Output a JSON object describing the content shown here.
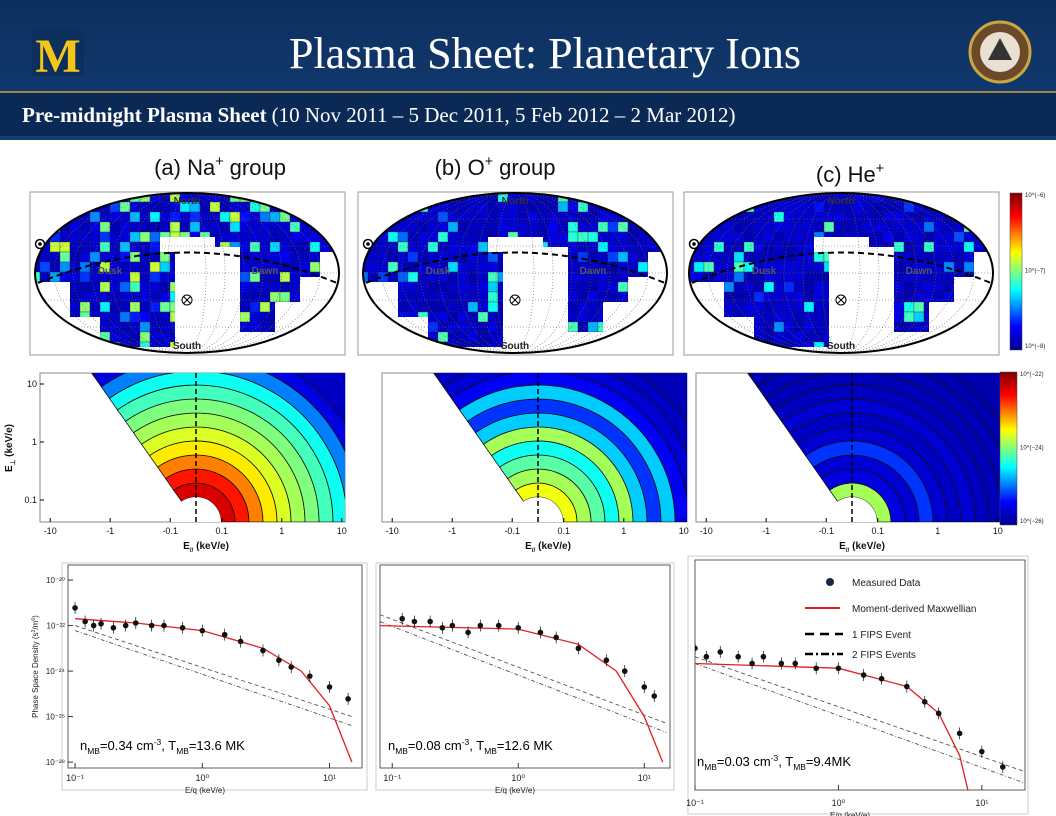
{
  "header": {
    "title": "Plasma Sheet: Planetary Ions",
    "subtitle_bold": "Pre-midnight Plasma Sheet",
    "subtitle_rest": "(10 Nov 2011 – 5 Dec 2011,  5 Feb 2012 – 2 Mar 2012)"
  },
  "columns": [
    {
      "label": [
        {
          "text": "(a) Na"
        },
        {
          "text": "+",
          "style": "sup"
        },
        {
          "text": " group"
        }
      ]
    },
    {
      "label": [
        {
          "text": "(b) O"
        },
        {
          "text": "+",
          "style": "sup"
        },
        {
          "text": " group"
        }
      ]
    },
    {
      "label": [
        {
          "text": "(c) He"
        },
        {
          "text": "+",
          "style": "sup"
        }
      ]
    }
  ],
  "maps": {
    "labels": [
      "North",
      "South",
      "Dusk",
      "Dawn"
    ],
    "colorbar_ticks": [
      "10^(−6)",
      "10^(−7)",
      "10^(−8)"
    ]
  },
  "energy": {
    "y_label": [
      {
        "text": "E"
      },
      {
        "text": "⊥",
        "style": "sub"
      },
      {
        "text": " (keV/e)"
      }
    ],
    "x_label": [
      {
        "text": "E"
      },
      {
        "text": "//",
        "style": "sub"
      },
      {
        "text": " (keV/e)"
      }
    ],
    "yticks": [
      10,
      1,
      0.1
    ],
    "xticks": [
      -10,
      -1,
      -0.1,
      0.1,
      1,
      10
    ],
    "symlog": true,
    "colorbar_ticks": [
      "10^(−22)",
      "10^(−24)",
      "10^(−26)"
    ]
  },
  "spectra": {
    "type": "scatter",
    "log_x": true,
    "log_y": true,
    "y_label": [
      {
        "text": "Phase Space Density (s"
      },
      {
        "text": "3",
        "style": "sup"
      },
      {
        "text": "/m"
      },
      {
        "text": "6",
        "style": "sup"
      },
      {
        "text": ")"
      }
    ],
    "x_label": "E/q (keV/e)",
    "legend": [
      "Measured Data",
      "Moment-derived Maxwellian",
      "1 FIPS Event",
      "2 FIPS Events"
    ],
    "colors": {
      "points": "#111111",
      "maxwellian": "#e02020",
      "fips": "#555555"
    },
    "panels": [
      {
        "xlim": [
          0.088,
          18
        ],
        "ylim": [
          5.5e-29,
          4.6e-20
        ],
        "xticks": [
          {
            "value": 0.1,
            "label": "10⁻¹"
          },
          {
            "value": 1,
            "label": "10⁰"
          },
          {
            "value": 10,
            "label": "10¹"
          }
        ],
        "yticks": [
          {
            "value": 1e-20,
            "label": "10⁻²⁰"
          },
          {
            "value": 1e-22,
            "label": "10⁻²²"
          },
          {
            "value": 1e-24,
            "label": "10⁻²⁴"
          },
          {
            "value": 1e-26,
            "label": "10⁻²⁶"
          },
          {
            "value": 1e-28,
            "label": "10⁻²⁸"
          }
        ],
        "annotation": [
          {
            "text": "n"
          },
          {
            "text": "MB",
            "style": "sub"
          },
          {
            "text": "=0.34 cm"
          },
          {
            "text": "-3",
            "style": "sup"
          },
          {
            "text": ", T"
          },
          {
            "text": "MB",
            "style": "sub"
          },
          {
            "text": "=13.6 MK"
          }
        ],
        "points": {
          "x": [
            0.1,
            0.12,
            0.14,
            0.16,
            0.2,
            0.25,
            0.3,
            0.4,
            0.5,
            0.7,
            1,
            1.5,
            2,
            3,
            4,
            5,
            7,
            10,
            14
          ],
          "y": [
            6e-22,
            1.5e-22,
            1e-22,
            1.2e-22,
            8e-23,
            1e-22,
            1.3e-22,
            1e-22,
            1e-22,
            8e-23,
            6e-23,
            4e-23,
            2e-23,
            8e-24,
            3e-24,
            1.5e-24,
            6e-25,
            2e-25,
            6e-26
          ]
        },
        "maxwellian": {
          "x": [
            0.1,
            0.3,
            1,
            3,
            6,
            10,
            15
          ],
          "y": [
            2e-22,
            1.3e-22,
            6e-23,
            1e-23,
            1e-24,
            3e-26,
            1e-28
          ]
        },
        "fips1": {
          "x": [
            0.1,
            15
          ],
          "y": [
            1e-22,
            1e-26
          ]
        },
        "fips2": {
          "x": [
            0.1,
            15
          ],
          "y": [
            6e-23,
            4e-27
          ]
        }
      },
      {
        "xlim": [
          0.08,
          16
        ],
        "ylim": [
          5.5e-29,
          4.6e-20
        ],
        "xticks": [
          {
            "value": 0.1,
            "label": "10⁻¹"
          },
          {
            "value": 1,
            "label": "10⁰"
          },
          {
            "value": 10,
            "label": "10¹"
          }
        ],
        "yticks": [],
        "annotation": [
          {
            "text": "n"
          },
          {
            "text": "MB",
            "style": "sub"
          },
          {
            "text": "=0.08 cm"
          },
          {
            "text": "-3",
            "style": "sup"
          },
          {
            "text": ", T"
          },
          {
            "text": "MB",
            "style": "sub"
          },
          {
            "text": "=12.6 MK"
          }
        ],
        "points": {
          "x": [
            0.12,
            0.15,
            0.2,
            0.25,
            0.3,
            0.4,
            0.5,
            0.7,
            1,
            1.5,
            2,
            3,
            5,
            7,
            10,
            12
          ],
          "y": [
            2e-22,
            1.5e-22,
            1.5e-22,
            8e-23,
            1e-22,
            5e-23,
            1e-22,
            1e-22,
            8e-23,
            5e-23,
            3e-23,
            1e-23,
            3e-24,
            1e-24,
            2e-25,
            8e-26
          ]
        },
        "maxwellian": {
          "x": [
            0.08,
            1,
            3,
            6,
            10,
            14
          ],
          "y": [
            1e-22,
            7e-23,
            1.5e-23,
            1e-24,
            1e-26,
            1e-28
          ]
        },
        "fips1": {
          "x": [
            0.08,
            15
          ],
          "y": [
            3e-22,
            5e-27
          ]
        },
        "fips2": {
          "x": [
            0.08,
            15
          ],
          "y": [
            1.5e-22,
            2e-27
          ]
        }
      },
      {
        "xlim": [
          0.1,
          20
        ],
        "ylim": [
          1e-29,
          1e-23
        ],
        "xticks": [
          {
            "value": 0.1,
            "label": "10⁻¹"
          },
          {
            "value": 1,
            "label": "10⁰"
          },
          {
            "value": 10,
            "label": "10¹"
          }
        ],
        "yticks": [],
        "annotation": [
          {
            "text": "n"
          },
          {
            "text": "MB",
            "style": "sub"
          },
          {
            "text": "=0.03 cm"
          },
          {
            "text": "-3",
            "style": "sup"
          },
          {
            "text": ", T"
          },
          {
            "text": "MB",
            "style": "sub"
          },
          {
            "text": "=9.4MK"
          }
        ],
        "points": {
          "x": [
            0.1,
            0.12,
            0.15,
            0.2,
            0.25,
            0.3,
            0.4,
            0.5,
            0.7,
            1,
            1.5,
            2,
            3,
            4,
            5,
            7,
            10,
            14
          ],
          "y": [
            5e-26,
            3e-26,
            4e-26,
            3e-26,
            2e-26,
            3e-26,
            2e-26,
            2e-26,
            1.5e-26,
            1.5e-26,
            1e-26,
            8e-27,
            5e-27,
            2e-27,
            1e-27,
            3e-28,
            1e-28,
            4e-29
          ]
        },
        "maxwellian": {
          "x": [
            0.1,
            1,
            3,
            5,
            7,
            8
          ],
          "y": [
            2e-26,
            1.5e-26,
            5e-27,
            1e-27,
            8e-29,
            1e-29
          ]
        },
        "fips1": {
          "x": [
            0.1,
            20
          ],
          "y": [
            3e-26,
            3e-29
          ]
        },
        "fips2": {
          "x": [
            0.1,
            20
          ],
          "y": [
            2e-26,
            1.5e-29
          ]
        }
      }
    ]
  }
}
